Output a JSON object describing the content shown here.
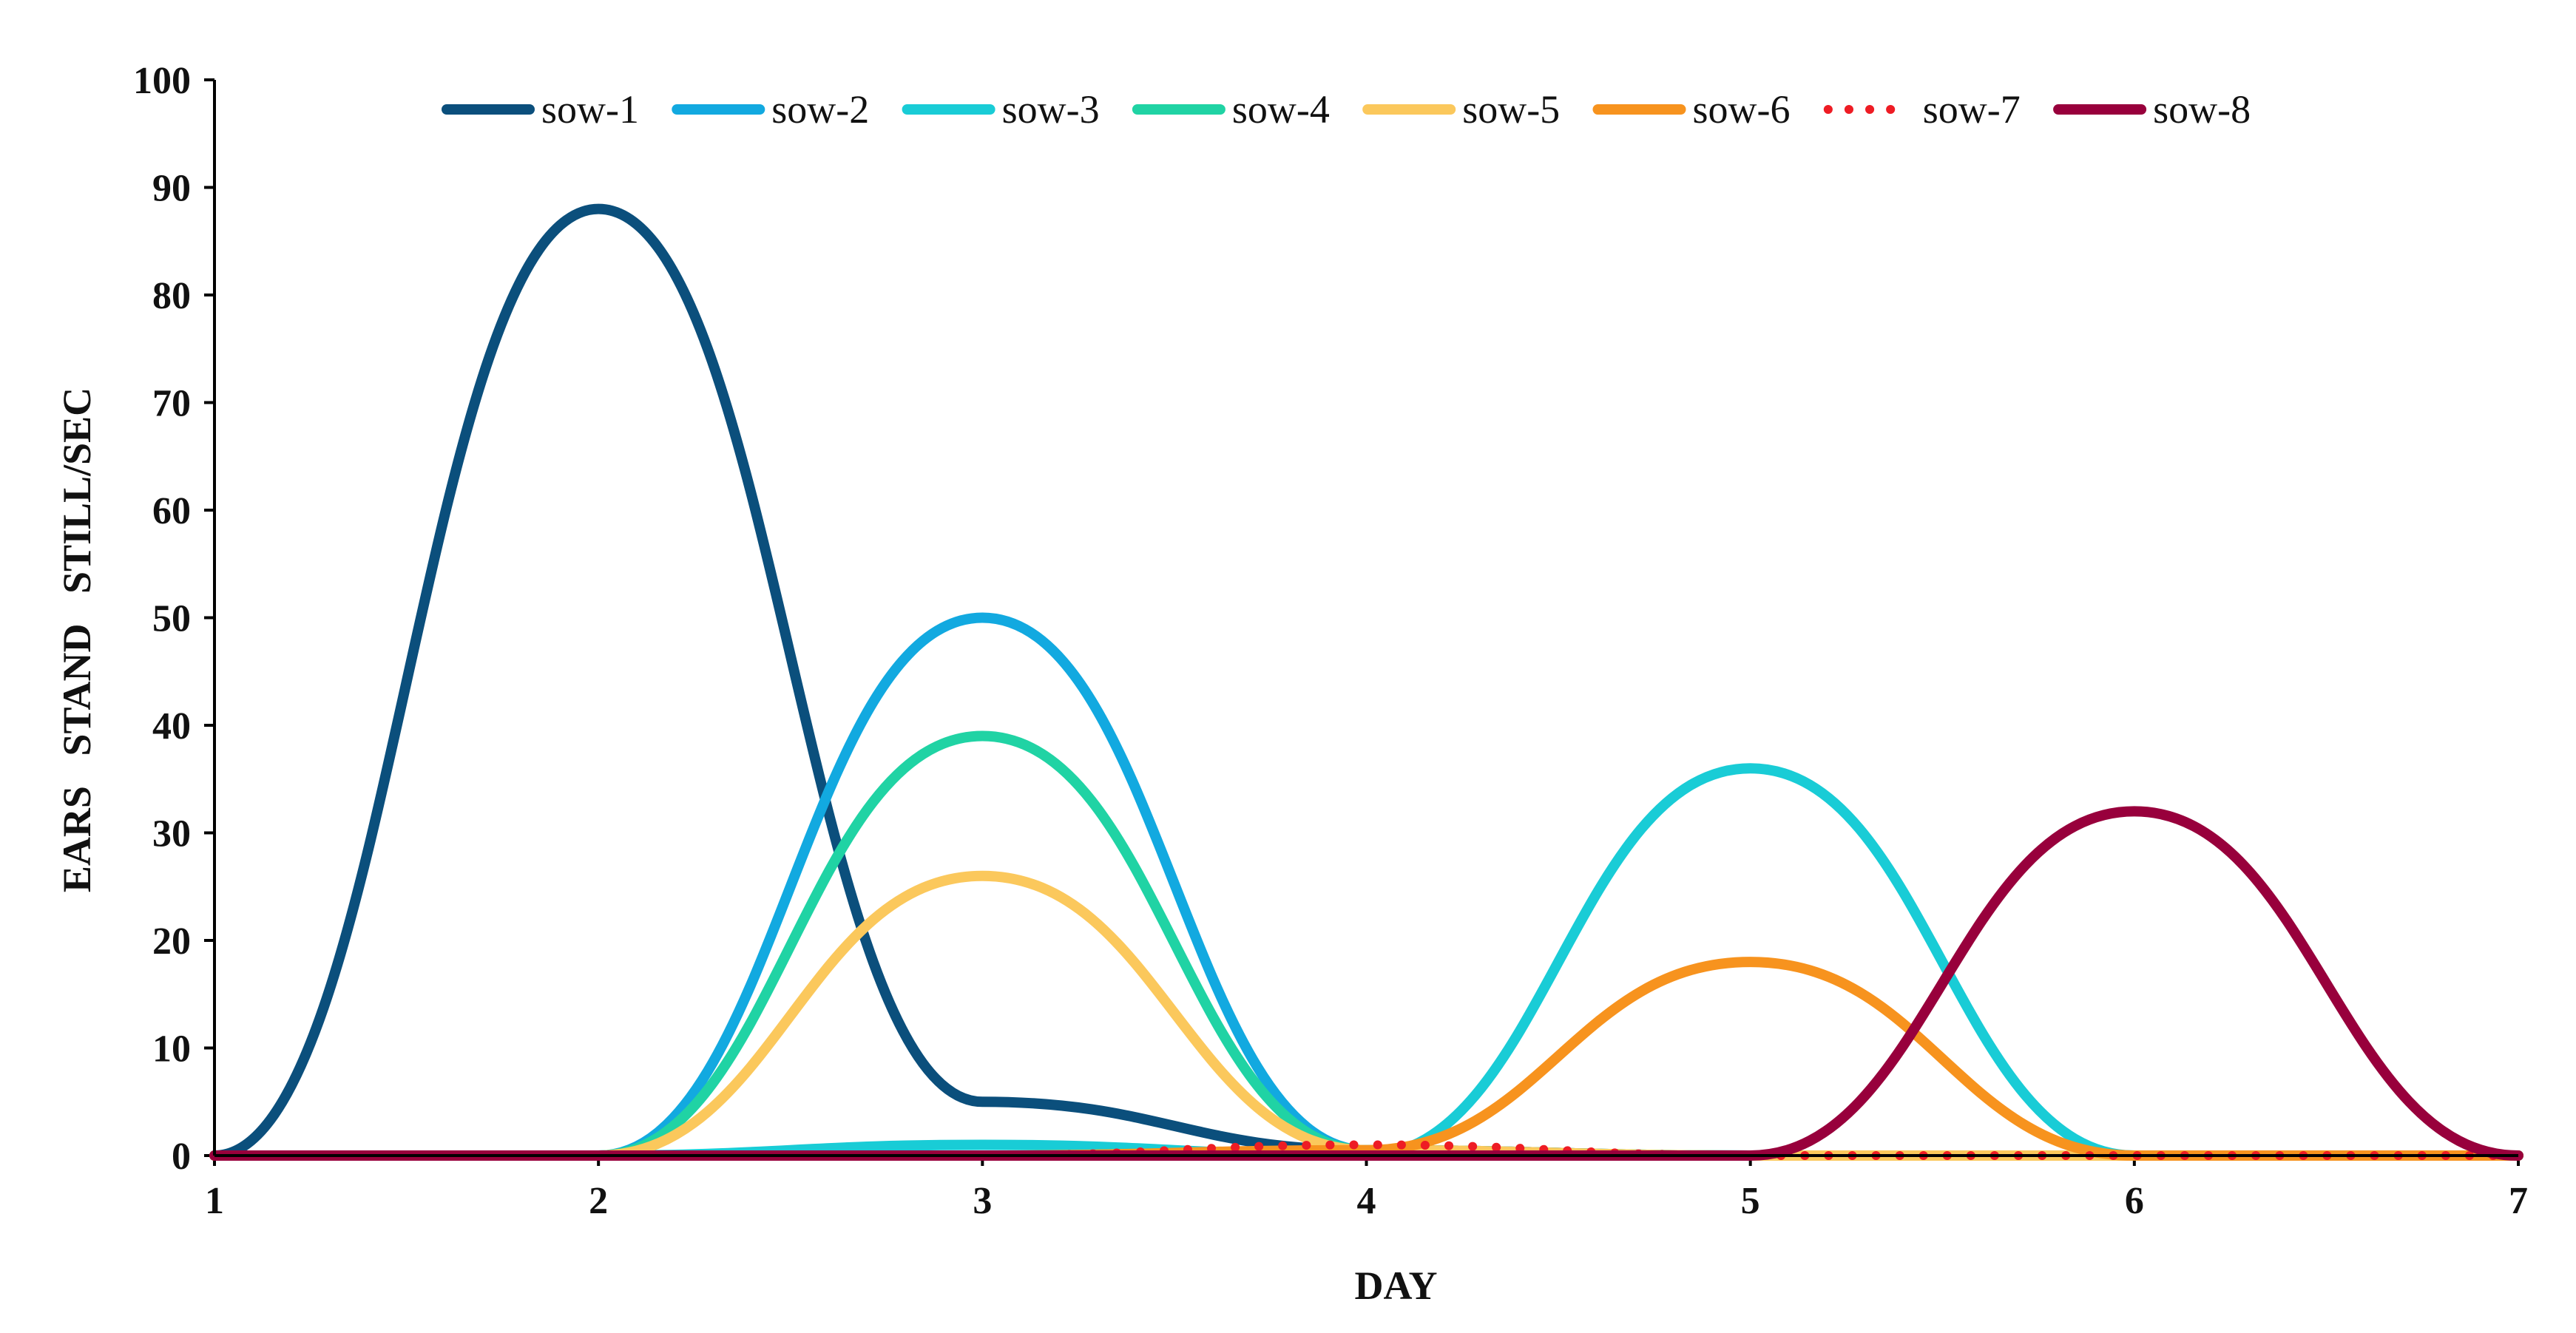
{
  "chart_data": {
    "type": "line",
    "title": "",
    "xlabel": "DAY",
    "ylabel": "EARS   STAND   STILL/SEC",
    "x": [
      1,
      2,
      3,
      4,
      5,
      6,
      7
    ],
    "xlim": [
      1,
      7
    ],
    "ylim": [
      0,
      100
    ],
    "x_ticks": [
      "1",
      "2",
      "3",
      "4",
      "5",
      "6",
      "7"
    ],
    "y_ticks": [
      "0",
      "10",
      "20",
      "30",
      "40",
      "50",
      "60",
      "70",
      "80",
      "90",
      "100"
    ],
    "grid": false,
    "smooth": true,
    "legend_position": "top",
    "series": [
      {
        "name": "sow-1",
        "values": [
          0,
          88,
          5,
          0.5,
          0,
          0,
          0
        ],
        "color": "#0b4f7c",
        "dash": "solid"
      },
      {
        "name": "sow-2",
        "values": [
          0,
          0,
          50,
          0.5,
          0,
          0,
          0
        ],
        "color": "#12a9e0",
        "dash": "solid"
      },
      {
        "name": "sow-3",
        "values": [
          0,
          0,
          1,
          0,
          36,
          0,
          0
        ],
        "color": "#19ccd6",
        "dash": "solid"
      },
      {
        "name": "sow-4",
        "values": [
          0,
          0,
          39,
          0.5,
          0,
          0,
          0
        ],
        "color": "#20d3a4",
        "dash": "solid"
      },
      {
        "name": "sow-5",
        "values": [
          0,
          0,
          26,
          0.5,
          0,
          0,
          0
        ],
        "color": "#fbc85c",
        "dash": "solid"
      },
      {
        "name": "sow-6",
        "values": [
          0,
          0,
          0,
          0.5,
          18,
          0,
          0
        ],
        "color": "#f7931e",
        "dash": "solid"
      },
      {
        "name": "sow-7",
        "values": [
          0,
          0,
          0,
          1,
          0,
          0,
          0
        ],
        "color": "#ee1c24",
        "dash": "dotted"
      },
      {
        "name": "sow-8",
        "values": [
          0,
          0,
          0,
          0,
          0,
          32,
          0
        ],
        "color": "#98003c",
        "dash": "solid"
      }
    ]
  }
}
